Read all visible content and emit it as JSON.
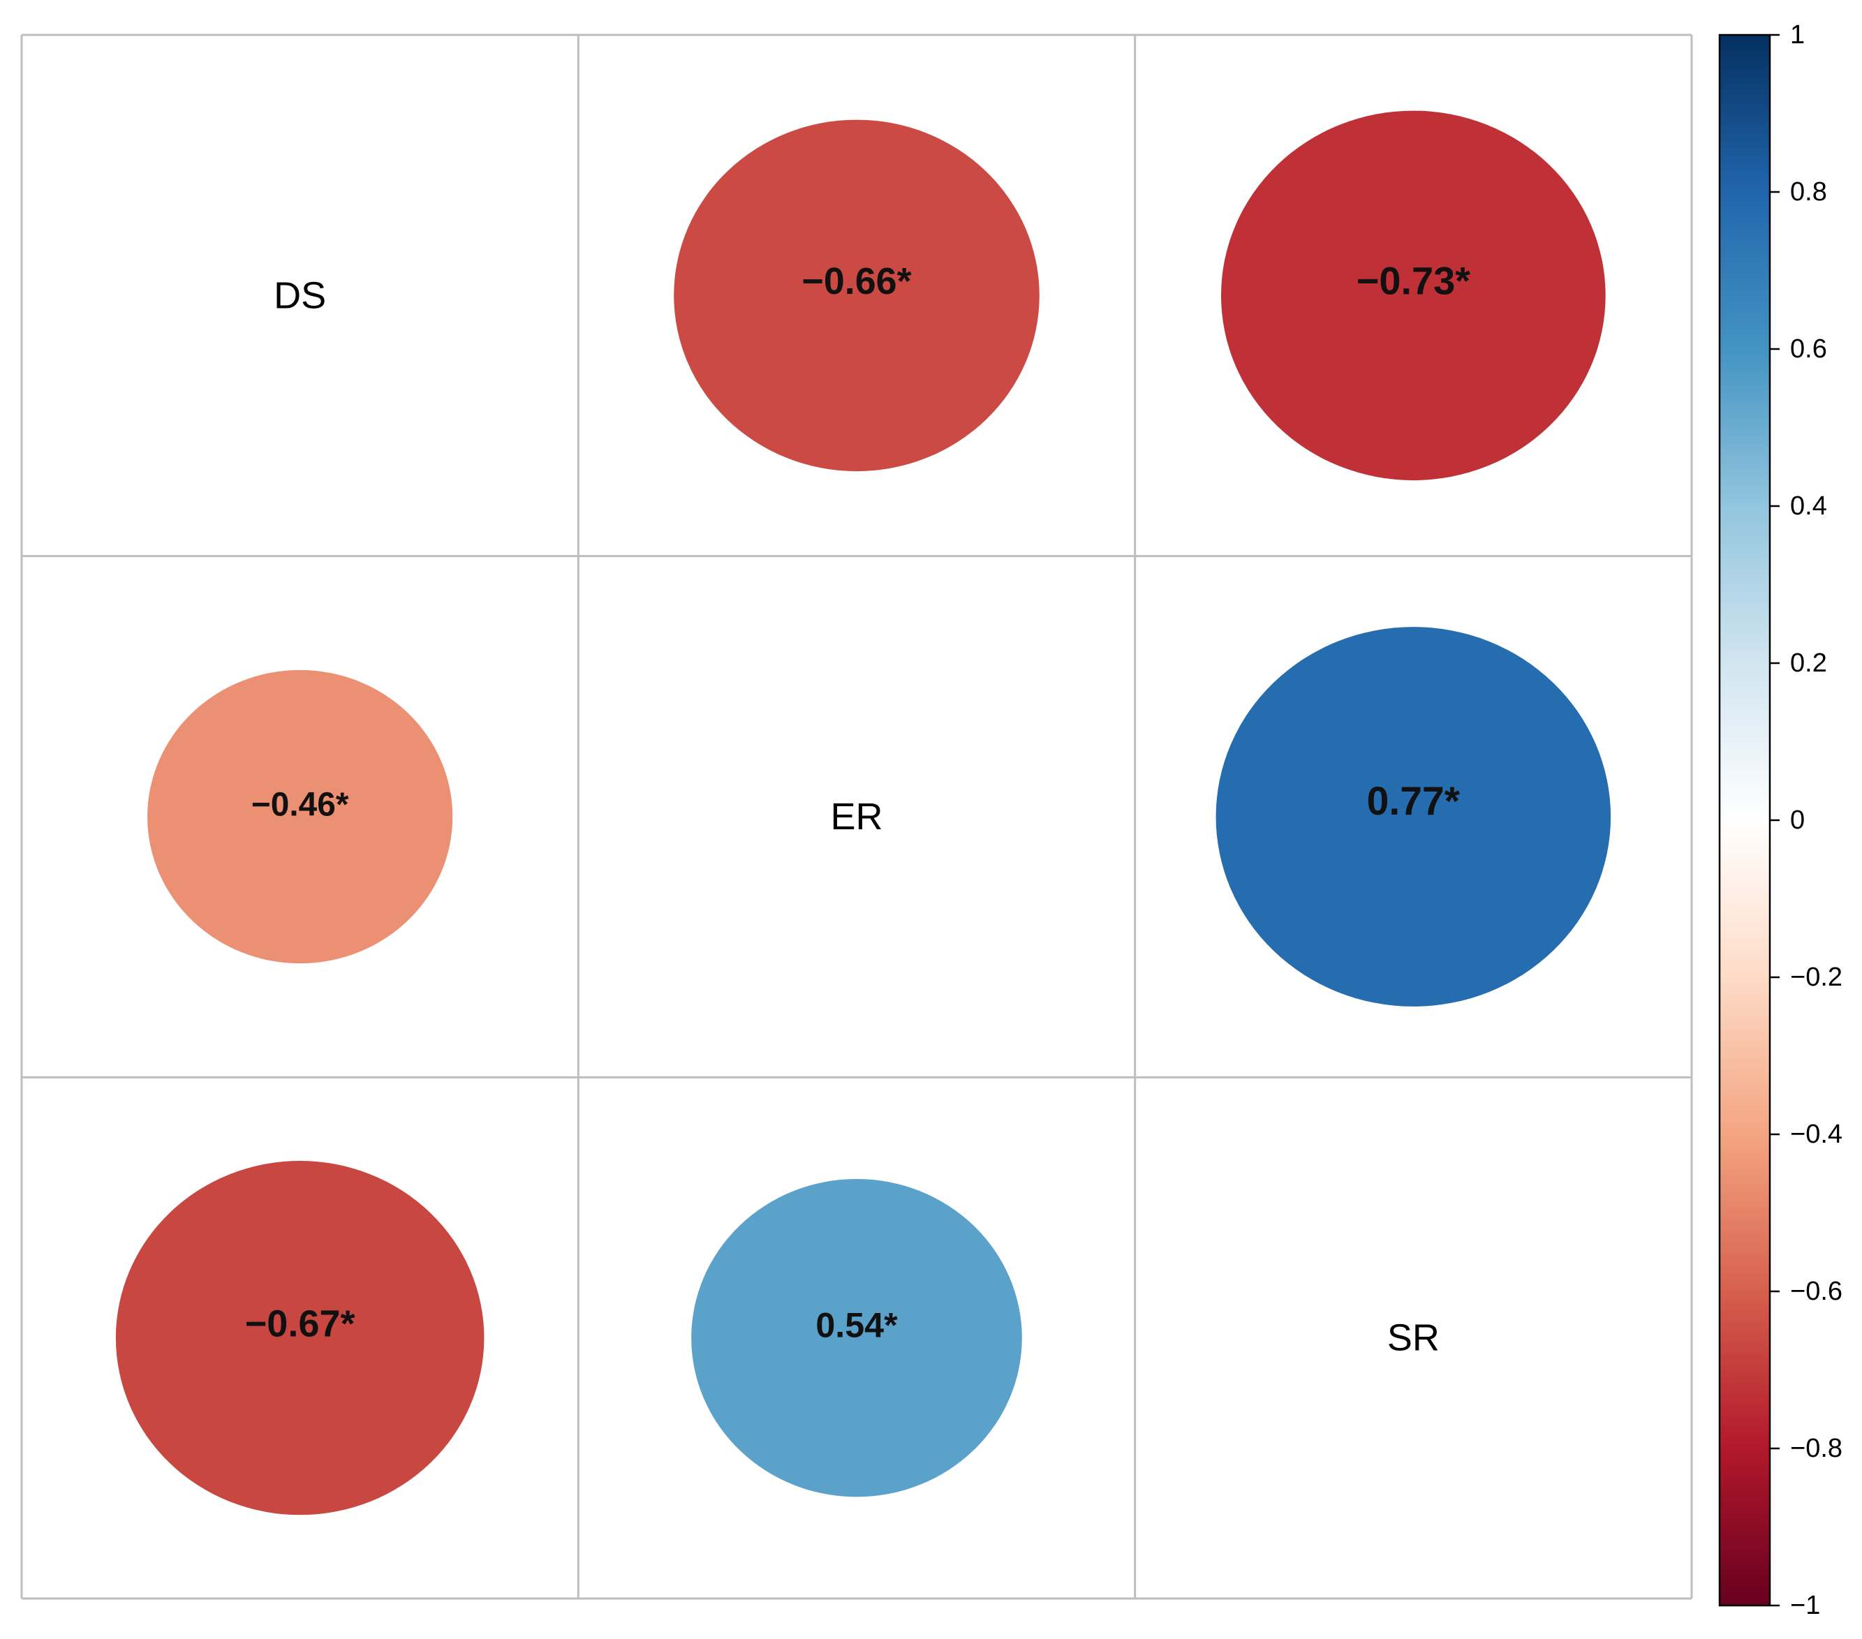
{
  "chart_data": {
    "type": "heatmap",
    "variables": [
      "DS",
      "ER",
      "SR"
    ],
    "matrix": [
      [
        null,
        -0.66,
        -0.73
      ],
      [
        -0.46,
        null,
        0.77
      ],
      [
        -0.67,
        0.54,
        null
      ]
    ],
    "cell_labels": [
      [
        "",
        "−0.66*",
        "−0.73*"
      ],
      [
        "−0.46*",
        "",
        "0.77*"
      ],
      [
        "−0.67*",
        "0.54*",
        ""
      ]
    ],
    "colorbar": {
      "range": [
        -1,
        1
      ],
      "ticks": [
        1,
        0.8,
        0.6,
        0.4,
        0.2,
        0,
        -0.2,
        -0.4,
        -0.6,
        -0.8,
        -1
      ],
      "tick_labels": [
        "1",
        "0.8",
        "0.6",
        "0.4",
        "0.2",
        "0",
        "−0.2",
        "−0.4",
        "−0.6",
        "−0.8",
        "−1"
      ],
      "palette": [
        "#67001F",
        "#B2182B",
        "#D6604D",
        "#F4A582",
        "#FDDBC7",
        "#FFFFFF",
        "#D1E5F0",
        "#92C5DE",
        "#4393C3",
        "#2166AC",
        "#053061"
      ]
    },
    "grid": true,
    "legend_position": "right",
    "title": "",
    "xlabel": "",
    "ylabel": ""
  }
}
